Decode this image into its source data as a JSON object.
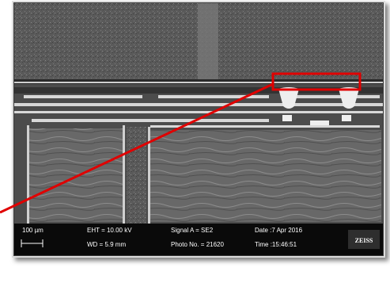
{
  "info_bar": {
    "scale_bar": "100 µm",
    "eht": "EHT = 10.00 kV",
    "wd": "WD =  5.9 mm",
    "signal": "Signal A = SE2",
    "photo_no": "Photo No. = 21620",
    "date": "Date :7 Apr 2016",
    "time": "Time :15:46:51",
    "logo": "ZEISS"
  }
}
